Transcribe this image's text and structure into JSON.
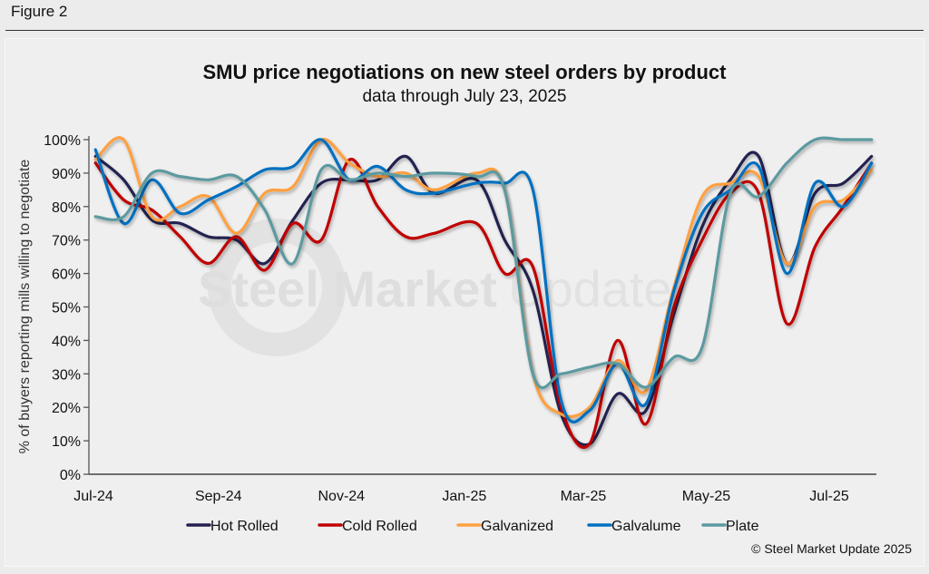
{
  "figure_label": "Figure 2",
  "watermark": {
    "bold": "Steel Market",
    "light": "Update"
  },
  "credit": "© Steel Market Update 2025",
  "chart_data": {
    "type": "line",
    "title": "SMU price negotiations on new steel orders by product",
    "subtitle": "data through July 23, 2025",
    "xlabel": "",
    "ylabel": "% of buyers reporting mills willing to negotiate",
    "ylim": [
      0,
      100
    ],
    "yticks": [
      "0%",
      "10%",
      "20%",
      "30%",
      "40%",
      "50%",
      "60%",
      "70%",
      "80%",
      "90%",
      "100%"
    ],
    "xlim": [
      "2024-07-01",
      "2025-08-02"
    ],
    "xticks": [
      {
        "date": "2024-07-01",
        "label": "Jul-24"
      },
      {
        "date": "2024-09-01",
        "label": "Sep-24"
      },
      {
        "date": "2024-11-01",
        "label": "Nov-24"
      },
      {
        "date": "2025-01-01",
        "label": "Jan-25"
      },
      {
        "date": "2025-03-01",
        "label": "Mar-25"
      },
      {
        "date": "2025-05-01",
        "label": "May-25"
      },
      {
        "date": "2025-07-01",
        "label": "Jul-25"
      }
    ],
    "grid": false,
    "legend": "bottom",
    "x": [
      "2024-07-02",
      "2024-07-16",
      "2024-07-30",
      "2024-08-13",
      "2024-08-27",
      "2024-09-10",
      "2024-09-24",
      "2024-10-08",
      "2024-10-22",
      "2024-11-05",
      "2024-11-19",
      "2024-12-03",
      "2024-12-17",
      "2025-01-07",
      "2025-01-21",
      "2025-02-04",
      "2025-02-18",
      "2025-03-04",
      "2025-03-18",
      "2025-04-01",
      "2025-04-15",
      "2025-04-29",
      "2025-05-13",
      "2025-05-27",
      "2025-06-10",
      "2025-06-24",
      "2025-07-08",
      "2025-07-22"
    ],
    "series": [
      {
        "name": "Hot Rolled",
        "color": "#23204f",
        "values": [
          95,
          88,
          76,
          75,
          71,
          70,
          63,
          76,
          87,
          88,
          88,
          95,
          84,
          88,
          70,
          55,
          18,
          9,
          24,
          19,
          48,
          74,
          88,
          95,
          63,
          84,
          87,
          95
        ]
      },
      {
        "name": "Cold Rolled",
        "color": "#c00000",
        "values": [
          93,
          82,
          79,
          71,
          63,
          71,
          61,
          75,
          70,
          94,
          80,
          71,
          72,
          75,
          60,
          62,
          20,
          9,
          40,
          15,
          50,
          70,
          84,
          84,
          45,
          68,
          80,
          93
        ]
      },
      {
        "name": "Galvanized",
        "color": "#ffa040",
        "values": [
          94,
          100,
          77,
          80,
          83,
          72,
          84,
          86,
          100,
          93,
          89,
          90,
          85,
          90,
          85,
          30,
          18,
          20,
          34,
          25,
          56,
          83,
          87,
          89,
          63,
          80,
          82,
          91
        ]
      },
      {
        "name": "Galvalume",
        "color": "#0070c0",
        "values": [
          97,
          75,
          88,
          78,
          82,
          86,
          91,
          92,
          100,
          88,
          92,
          85,
          84,
          87,
          87,
          85,
          22,
          19,
          33,
          21,
          55,
          78,
          85,
          92,
          60,
          87,
          80,
          93
        ]
      },
      {
        "name": "Plate",
        "color": "#5b9aa0",
        "values": [
          77,
          77,
          90,
          89,
          88,
          89,
          79,
          63,
          91,
          88,
          90,
          89,
          90,
          89,
          85,
          30,
          30,
          32,
          33,
          26,
          35,
          38,
          84,
          83,
          93,
          100,
          100,
          100
        ]
      }
    ]
  }
}
